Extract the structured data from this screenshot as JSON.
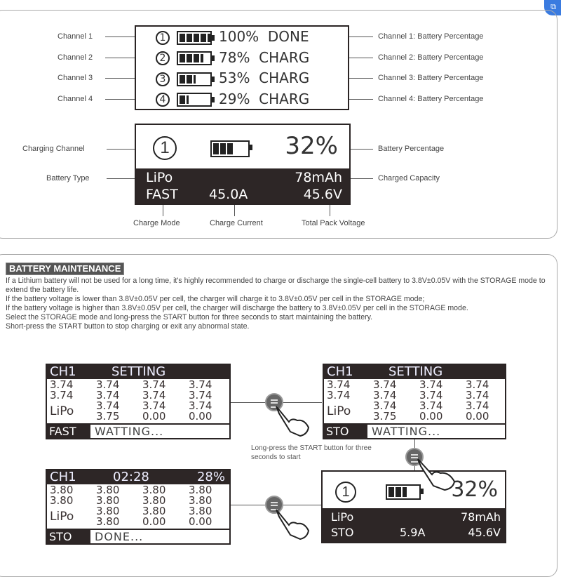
{
  "corner_icon": "translate-icon",
  "channels": [
    {
      "label": "Channel 1",
      "num": "1",
      "pct": "100%",
      "state": "DONE",
      "fill": 1.0,
      "right": "Channel 1: Battery Percentage"
    },
    {
      "label": "Channel 2",
      "num": "2",
      "pct": "78%",
      "state": "CHARG",
      "fill": 0.78,
      "right": "Channel 2: Battery Percentage"
    },
    {
      "label": "Channel 3",
      "num": "3",
      "pct": "53%",
      "state": "CHARG",
      "fill": 0.53,
      "right": "Channel 3: Battery Percentage"
    },
    {
      "label": "Channel 4",
      "num": "4",
      "pct": "29%",
      "state": "CHARG",
      "fill": 0.29,
      "right": "Channel 4: Battery Percentage"
    }
  ],
  "detail": {
    "num": "1",
    "pct": "32%",
    "type": "LiPo",
    "capacity": "78mAh",
    "mode": "FAST",
    "current": "45.0A",
    "voltage": "45.6V",
    "labels": {
      "channel": "Charging Channel",
      "type": "Battery Type",
      "percentage": "Battery Percentage",
      "capacity": "Charged Capacity",
      "mode": "Charge Mode",
      "current": "Charge Current",
      "voltage": "Total Pack Voltage"
    }
  },
  "maintenance": {
    "title": "BATTERY MAINTENANCE",
    "paragraphs": [
      "If a Lithium battery will not be used for a long time, it's highly recommended to charge or discharge the single-cell battery to 3.8V±0.05V with the STORAGE mode to extend the battery life.",
      "If the battery voltage is lower than 3.8V±0.05V per cell, the charger will charge it to 3.8V±0.05V per cell in the STORAGE mode;",
      "If the battery voltage is higher than 3.8V±0.05V per cell, the charger will discharge the battery to 3.8V±0.05V per cell in the STORAGE mode.",
      "Select the STORAGE mode and long-press the START button for three seconds to start maintaining the battery.",
      "Short-press the START button to stop charging or exit any abnormal state."
    ],
    "caption": "Long-press the START button for three seconds to start"
  },
  "screens": {
    "s1": {
      "ch": "CH1",
      "title": "SETTING",
      "cells": [
        "3.74",
        "3.74",
        "3.74",
        "3.74",
        "3.74",
        "3.74",
        "3.74",
        "3.74",
        "3.74",
        "3.74",
        "3.74",
        "LiPo",
        "3.75",
        "0.00",
        "0.00",
        ""
      ],
      "mode": "FAST",
      "status": "WATTING..."
    },
    "s2": {
      "ch": "CH1",
      "title": "SETTING",
      "cells": [
        "3.74",
        "3.74",
        "3.74",
        "3.74",
        "3.74",
        "3.74",
        "3.74",
        "3.74",
        "3.74",
        "3.74",
        "3.74",
        "LiPo",
        "3.75",
        "0.00",
        "0.00",
        ""
      ],
      "mode": "STO",
      "status": "WATTING..."
    },
    "s3": {
      "ch": "CH1",
      "time": "02:28",
      "pct": "28%",
      "cells": [
        "3.80",
        "3.80",
        "3.80",
        "3.80",
        "3.80",
        "3.80",
        "3.80",
        "3.80",
        "3.80",
        "3.80",
        "3.80",
        "LiPo",
        "3.80",
        "0.00",
        "0.00",
        ""
      ],
      "mode": "STO",
      "status": "DONE..."
    },
    "s4": {
      "num": "1",
      "pct": "32%",
      "type": "LiPo",
      "capacity": "78mAh",
      "mode": "STO",
      "current": "5.9A",
      "voltage": "45.6V"
    }
  }
}
